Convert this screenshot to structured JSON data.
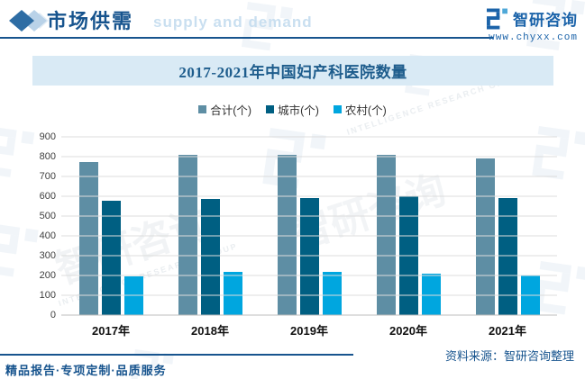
{
  "header": {
    "title": "市场供需",
    "ghost_subtitle": "supply and demand",
    "logo_text": "智研咨询",
    "logo_url": "www.chyxx.com"
  },
  "chart_data": {
    "type": "bar",
    "title": "2017-2021年中国妇产科医院数量",
    "categories": [
      "2017年",
      "2018年",
      "2019年",
      "2020年",
      "2021年"
    ],
    "series": [
      {
        "name": "合计(个)",
        "color": "#5E8EA4",
        "values": [
          773,
          807,
          809,
          807,
          793
        ]
      },
      {
        "name": "城市(个)",
        "color": "#005F82",
        "values": [
          577,
          588,
          592,
          600,
          593
        ]
      },
      {
        "name": "农村(个)",
        "color": "#00A6DF",
        "values": [
          196,
          219,
          217,
          207,
          200
        ]
      }
    ],
    "ylim": [
      0,
      900
    ],
    "ytick_step": 100,
    "grid": true,
    "legend_position": "top"
  },
  "footer": {
    "source": "资料来源：智研咨询整理",
    "services": "精品报告·专项定制·品质服务"
  },
  "watermark": {
    "text": "智研咨询",
    "subtext": "INTELLIGENCE RESEARCH GROUP"
  },
  "colors": {
    "accent_blue": "#17548E",
    "logo_blue": "#1B63A9",
    "banner_bg": "#D9EAF5",
    "banner_text": "#1D5C8C",
    "gridline": "#DCDCDC"
  }
}
